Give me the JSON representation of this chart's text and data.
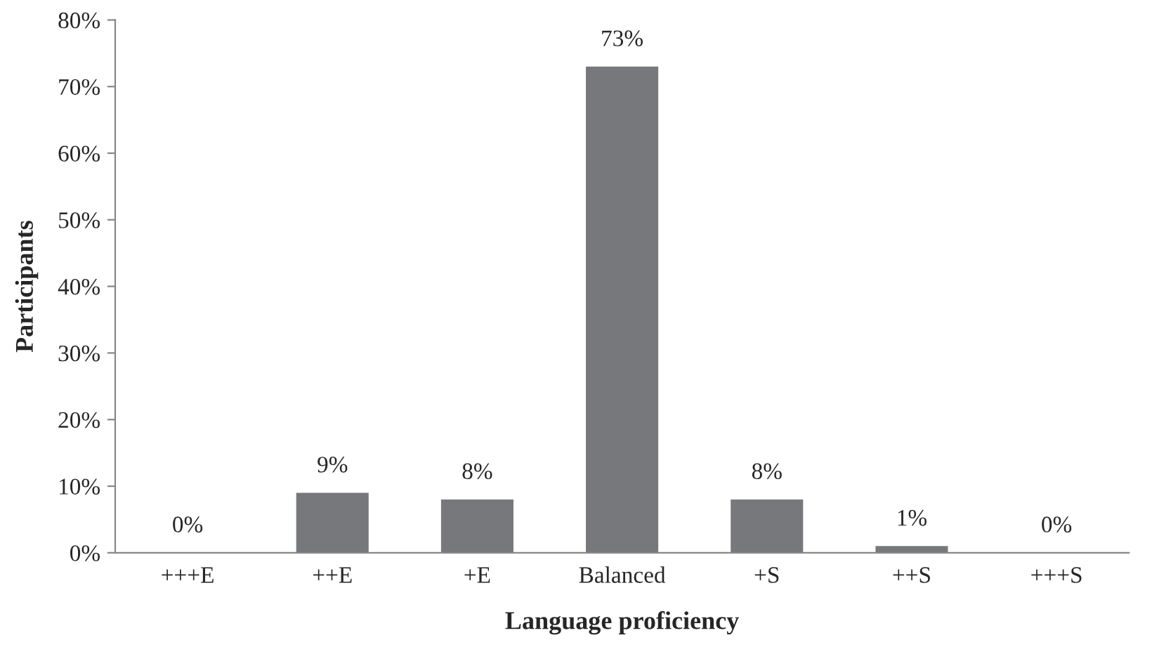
{
  "chart_data": {
    "type": "bar",
    "xlabel": "Language proficiency",
    "ylabel": "Participants",
    "categories": [
      "+++E",
      "++E",
      "+E",
      "Balanced",
      "+S",
      "++S",
      "+++S"
    ],
    "values": [
      0,
      9,
      8,
      73,
      8,
      1,
      0
    ],
    "value_labels": [
      "0%",
      "9%",
      "8%",
      "73%",
      "8%",
      "1%",
      "0%"
    ],
    "color": "#77787b",
    "ylim": [
      0,
      80
    ],
    "yticks": [
      {
        "value": 0,
        "label": "0%"
      },
      {
        "value": 10,
        "label": "10%"
      },
      {
        "value": 20,
        "label": "20%"
      },
      {
        "value": 30,
        "label": "30%"
      },
      {
        "value": 40,
        "label": "40%"
      },
      {
        "value": 50,
        "label": "50%"
      },
      {
        "value": 60,
        "label": "60%"
      },
      {
        "value": 70,
        "label": "70%"
      },
      {
        "value": 80,
        "label": "80%"
      }
    ],
    "grid": false,
    "legend": false
  }
}
